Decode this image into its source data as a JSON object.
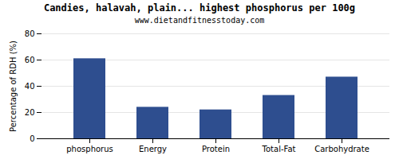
{
  "chart_data": {
    "type": "bar",
    "title": "Candies, halavah, plain... highest phosphorus per 100g",
    "subtitle": "www.dietandfitnesstoday.com",
    "categories": [
      "phosphorus",
      "Energy",
      "Protein",
      "Total-Fat",
      "Carbohydrate"
    ],
    "values": [
      61,
      24,
      22,
      33,
      47
    ],
    "color": "#2e4e8f",
    "ylabel": "Percentage of RDH (%)",
    "ylim": [
      0,
      80
    ],
    "yticks": [
      0,
      20,
      40,
      60,
      80
    ],
    "grid": true
  }
}
